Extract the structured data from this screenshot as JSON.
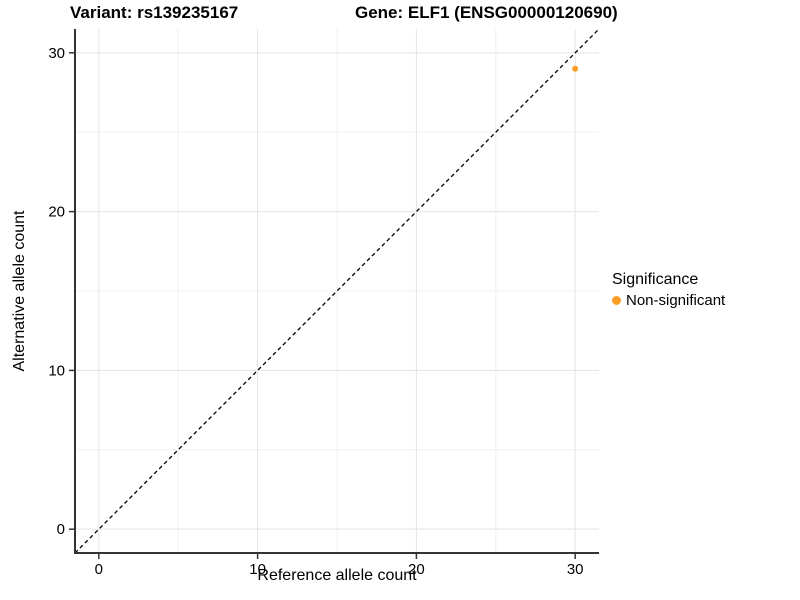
{
  "chart_data": {
    "type": "scatter",
    "title_left": "Variant: rs139235167",
    "title_right": "Gene: ELF1 (ENSG00000120690)",
    "xlabel": "Reference allele count",
    "ylabel": "Alternative allele count",
    "xlim": [
      -1.5,
      31.5
    ],
    "ylim": [
      -1.5,
      31.5
    ],
    "xticks": [
      0,
      10,
      20,
      30
    ],
    "yticks": [
      0,
      10,
      20,
      30
    ],
    "minor_xticks": [
      5,
      15,
      25
    ],
    "minor_yticks": [
      5,
      15,
      25
    ],
    "grid": "major+minor",
    "points": [
      {
        "x": 30,
        "y": 29,
        "series": "Non-significant"
      }
    ],
    "reference_line": {
      "type": "identity",
      "x1": -1.5,
      "y1": -1.5,
      "x2": 31.5,
      "y2": 31.5,
      "style": "dashed",
      "color": "#000000"
    },
    "legend": {
      "title": "Significance",
      "position": "right",
      "entries": [
        {
          "label": "Non-significant",
          "color": "#FA9E28"
        }
      ]
    },
    "colors": {
      "point": "#FA9E28",
      "axis_line": "#333333",
      "tick_mark": "#333333",
      "grid_major": "#E3E3E3",
      "grid_minor": "#F0F0F0",
      "text": "#000000"
    }
  }
}
